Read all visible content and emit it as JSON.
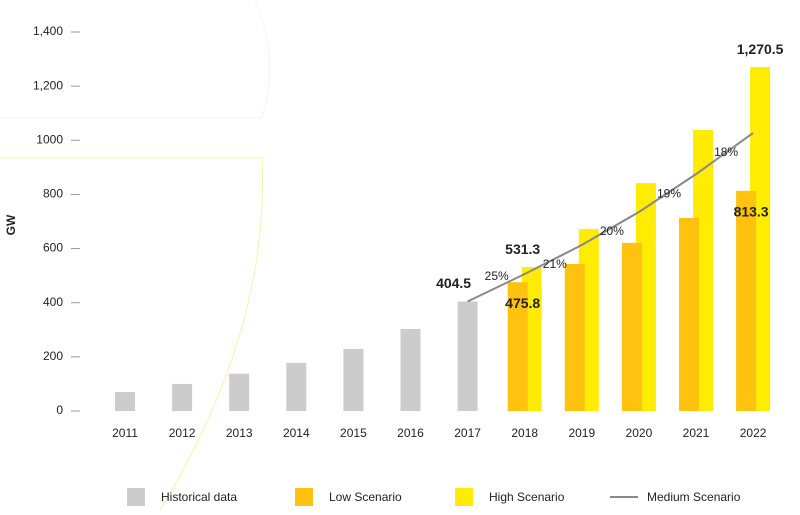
{
  "chart_data": {
    "type": "bar",
    "y_label": "GW",
    "categories": [
      "2011",
      "2012",
      "2013",
      "2014",
      "2015",
      "2016",
      "2017",
      "2018",
      "2019",
      "2020",
      "2021",
      "2022"
    ],
    "ylim": [
      0,
      1400
    ],
    "yticks": [
      0,
      200,
      400,
      600,
      800,
      1000,
      {
        "value": 1200,
        "label": "1,200"
      },
      {
        "value": 1400,
        "label": "1,400"
      }
    ],
    "series": [
      {
        "name": "Historical data",
        "color": "#cccccc",
        "kind": "bar",
        "offset": 0,
        "values": [
          70,
          100,
          138,
          178,
          229,
          303,
          404.5,
          null,
          null,
          null,
          null,
          null
        ],
        "value_labels": [
          null,
          null,
          null,
          null,
          null,
          null,
          "404.5",
          null,
          null,
          null,
          null,
          null
        ]
      },
      {
        "name": "High Scenario",
        "color": "#ffec00",
        "kind": "bar",
        "offset": 1,
        "values": [
          null,
          null,
          null,
          null,
          null,
          null,
          null,
          531.3,
          672,
          842,
          1038,
          1270.5
        ],
        "value_labels": [
          null,
          null,
          null,
          null,
          null,
          null,
          null,
          "531.3",
          null,
          null,
          null,
          "1,270.5"
        ]
      },
      {
        "name": "Low Scenario",
        "color": "#ffc20e",
        "kind": "bar",
        "offset": -1,
        "values": [
          null,
          null,
          null,
          null,
          null,
          null,
          null,
          475.8,
          543,
          621,
          713,
          813.3
        ],
        "value_labels": [
          null,
          null,
          null,
          null,
          null,
          null,
          null,
          "475.8",
          null,
          null,
          null,
          "813.3"
        ]
      },
      {
        "name": "Medium Scenario",
        "color": "#888888",
        "kind": "line",
        "values": [
          null,
          null,
          null,
          null,
          null,
          null,
          404.5,
          506,
          613,
          735,
          875,
          1027
        ]
      }
    ],
    "legend_order": [
      0,
      2,
      1,
      3
    ],
    "annotations": [
      {
        "text": "25%",
        "category": 7
      },
      {
        "text": "21%",
        "category": 8
      },
      {
        "text": "20%",
        "category": 9
      },
      {
        "text": "19%",
        "category": 10
      },
      {
        "text": "18%",
        "category": 11
      }
    ]
  }
}
